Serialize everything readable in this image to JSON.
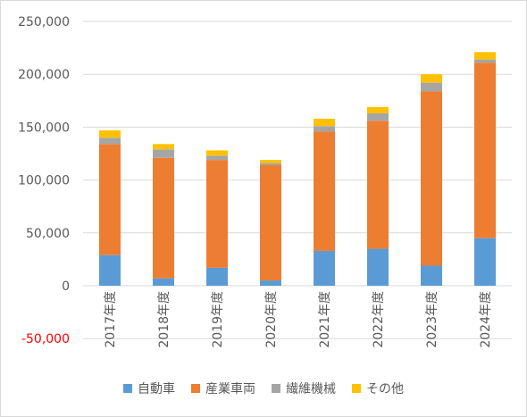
{
  "chart_data": {
    "type": "bar",
    "stacked": true,
    "categories": [
      "2017年度",
      "2018年度",
      "2019年度",
      "2020年度",
      "2021年度",
      "2022年度",
      "2023年度",
      "2024年度"
    ],
    "series": [
      {
        "name": "自動車",
        "color": "#5b9bd5",
        "values": [
          29000,
          7000,
          17000,
          5000,
          33000,
          35000,
          19000,
          45000
        ]
      },
      {
        "name": "産業車両",
        "color": "#ed7d31",
        "values": [
          105000,
          114000,
          102000,
          109000,
          113000,
          121000,
          165000,
          166000
        ]
      },
      {
        "name": "繊維機械",
        "color": "#a5a5a5",
        "values": [
          6000,
          8000,
          4000,
          2000,
          5000,
          7000,
          8000,
          3000
        ]
      },
      {
        "name": "その他",
        "color": "#ffc000",
        "values": [
          7000,
          5000,
          5000,
          3000,
          7000,
          6000,
          8000,
          7000
        ]
      }
    ],
    "y_ticks": [
      "250,000",
      "200,000",
      "150,000",
      "100,000",
      "50,000",
      "0",
      "-50,000"
    ],
    "y_tick_values": [
      250000,
      200000,
      150000,
      100000,
      50000,
      0,
      -50000
    ],
    "negative_tick_color": "#ff0000",
    "ylim": [
      -50000,
      250000
    ],
    "grid": true,
    "legend_position": "bottom"
  }
}
